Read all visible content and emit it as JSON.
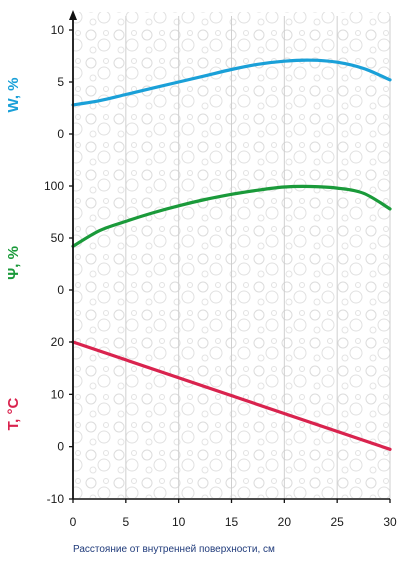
{
  "chart_data": {
    "type": "line",
    "xlabel": "Расстояние от внутренней поверхности, см",
    "x_ticks": [
      0,
      5,
      10,
      15,
      20,
      25,
      30
    ],
    "xlim": [
      0,
      30
    ],
    "panels": [
      {
        "name": "moisture",
        "ylabel": "W, %",
        "color": "#1aa0d8",
        "y_ticks": [
          0,
          5,
          10
        ],
        "ylim": [
          0,
          10
        ],
        "x": [
          0,
          2.5,
          5,
          7.5,
          10,
          12.5,
          15,
          17.5,
          20,
          22.5,
          25,
          27.5,
          30
        ],
        "values": [
          2.8,
          3.2,
          3.8,
          4.4,
          5.0,
          5.6,
          6.2,
          6.7,
          7.0,
          7.1,
          6.9,
          6.3,
          5.2
        ]
      },
      {
        "name": "relative-humidity",
        "ylabel": "Ψ, %",
        "color": "#1a9a3a",
        "y_ticks": [
          0,
          50,
          100
        ],
        "ylim": [
          0,
          100
        ],
        "x": [
          0,
          2.5,
          5,
          7.5,
          10,
          12.5,
          15,
          17.5,
          20,
          22.5,
          25,
          27.5,
          30
        ],
        "values": [
          42,
          57,
          66,
          74,
          81,
          87,
          92,
          96,
          99,
          99.5,
          98,
          93,
          78
        ]
      },
      {
        "name": "temperature",
        "ylabel": "T, °C",
        "color": "#d9234e",
        "y_ticks": [
          -10,
          0,
          10,
          20
        ],
        "ylim": [
          -10,
          20
        ],
        "x": [
          0,
          30
        ],
        "values": [
          20,
          -0.5
        ]
      }
    ]
  }
}
